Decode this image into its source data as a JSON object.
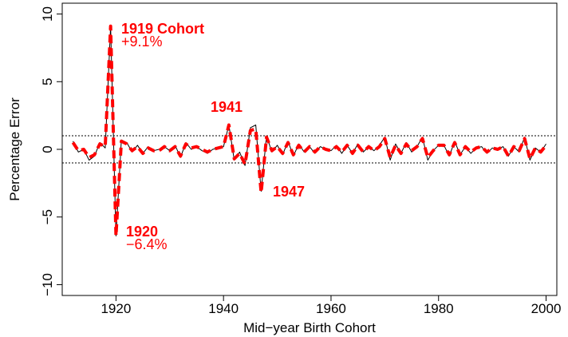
{
  "chart_data": {
    "type": "line",
    "x_label": "Mid−year Birth Cohort",
    "y_label": "Percentage Error",
    "x": [
      1912,
      1913,
      1914,
      1915,
      1916,
      1917,
      1918,
      1919,
      1920,
      1921,
      1922,
      1923,
      1924,
      1925,
      1926,
      1927,
      1928,
      1929,
      1930,
      1931,
      1932,
      1933,
      1934,
      1935,
      1936,
      1937,
      1938,
      1939,
      1940,
      1941,
      1942,
      1943,
      1944,
      1945,
      1946,
      1947,
      1948,
      1949,
      1950,
      1951,
      1952,
      1953,
      1954,
      1955,
      1956,
      1957,
      1958,
      1959,
      1960,
      1961,
      1962,
      1963,
      1964,
      1965,
      1966,
      1967,
      1968,
      1969,
      1970,
      1971,
      1972,
      1973,
      1974,
      1975,
      1976,
      1977,
      1978,
      1979,
      1980,
      1981,
      1982,
      1983,
      1984,
      1985,
      1986,
      1987,
      1988,
      1989,
      1990,
      1991,
      1992,
      1993,
      1994,
      1995,
      1996,
      1997,
      1998,
      1999,
      2000
    ],
    "series": [
      {
        "color": "#000000",
        "values": [
          0.6,
          -0.2,
          0.0,
          -0.8,
          -0.5,
          0.5,
          0.1,
          9.1,
          -6.4,
          0.7,
          0.5,
          -0.2,
          0.3,
          -0.3,
          0.2,
          -0.1,
          0.0,
          0.2,
          -0.1,
          0.3,
          -0.6,
          0.5,
          0.0,
          0.2,
          -0.1,
          -0.3,
          0.0,
          0.1,
          0.2,
          1.8,
          -0.8,
          -0.2,
          -1.2,
          1.6,
          1.8,
          -3.1,
          1.0,
          -0.2,
          0.3,
          -0.4,
          0.6,
          -0.5,
          0.4,
          -0.2,
          0.2,
          -0.3,
          0.2,
          0.0,
          -0.1,
          0.3,
          -0.3,
          0.3,
          -0.3,
          0.4,
          -0.2,
          0.2,
          -0.1,
          0.3,
          0.9,
          -0.8,
          0.4,
          -0.3,
          0.5,
          -0.2,
          0.2,
          0.9,
          -0.8,
          -0.1,
          0.3,
          0.3,
          -0.5,
          0.6,
          -0.4,
          0.2,
          -0.3,
          0.1,
          0.2,
          -0.3,
          0.1,
          0.0,
          0.2,
          -0.5,
          0.2,
          -0.2,
          0.9,
          -0.8,
          0.1,
          -0.2,
          0.4
        ]
      },
      {
        "color": "#ff0000",
        "values": [
          0.5,
          -0.1,
          0.0,
          -0.6,
          -0.4,
          0.4,
          0.2,
          9.1,
          -6.4,
          0.6,
          0.4,
          -0.1,
          0.2,
          -0.3,
          0.1,
          -0.1,
          -0.1,
          0.2,
          -0.1,
          0.2,
          -0.5,
          0.4,
          0.1,
          0.2,
          0.0,
          -0.2,
          0.0,
          0.1,
          0.2,
          1.8,
          -0.7,
          -0.3,
          -1.1,
          1.4,
          1.5,
          -3.2,
          0.9,
          -0.1,
          0.2,
          -0.3,
          0.5,
          -0.4,
          0.3,
          -0.2,
          0.2,
          -0.2,
          0.2,
          0.0,
          -0.1,
          0.2,
          -0.2,
          0.3,
          -0.3,
          0.3,
          -0.2,
          0.2,
          -0.1,
          0.2,
          0.8,
          -0.6,
          0.3,
          -0.3,
          0.4,
          -0.1,
          0.2,
          0.8,
          -0.6,
          -0.1,
          0.3,
          0.3,
          -0.4,
          0.5,
          -0.4,
          0.2,
          -0.2,
          0.1,
          0.2,
          -0.2,
          0.1,
          0.0,
          0.2,
          -0.5,
          0.2,
          -0.1,
          0.8,
          -0.7,
          0.1,
          -0.2,
          0.3
        ]
      }
    ],
    "hlines": [
      -1,
      1
    ],
    "annotations": [
      "1919 Cohort",
      "+9.1%",
      "1941",
      "1920",
      "−6.4%",
      "1947"
    ],
    "xlim": [
      1910,
      2002
    ],
    "ylim": [
      -10.8,
      10.8
    ],
    "xticks": [
      1920,
      1940,
      1960,
      1980,
      2000
    ],
    "yticks": [
      {
        "value": -10,
        "label": "−10"
      },
      {
        "value": -5,
        "label": "−5"
      },
      0,
      5,
      10
    ]
  }
}
